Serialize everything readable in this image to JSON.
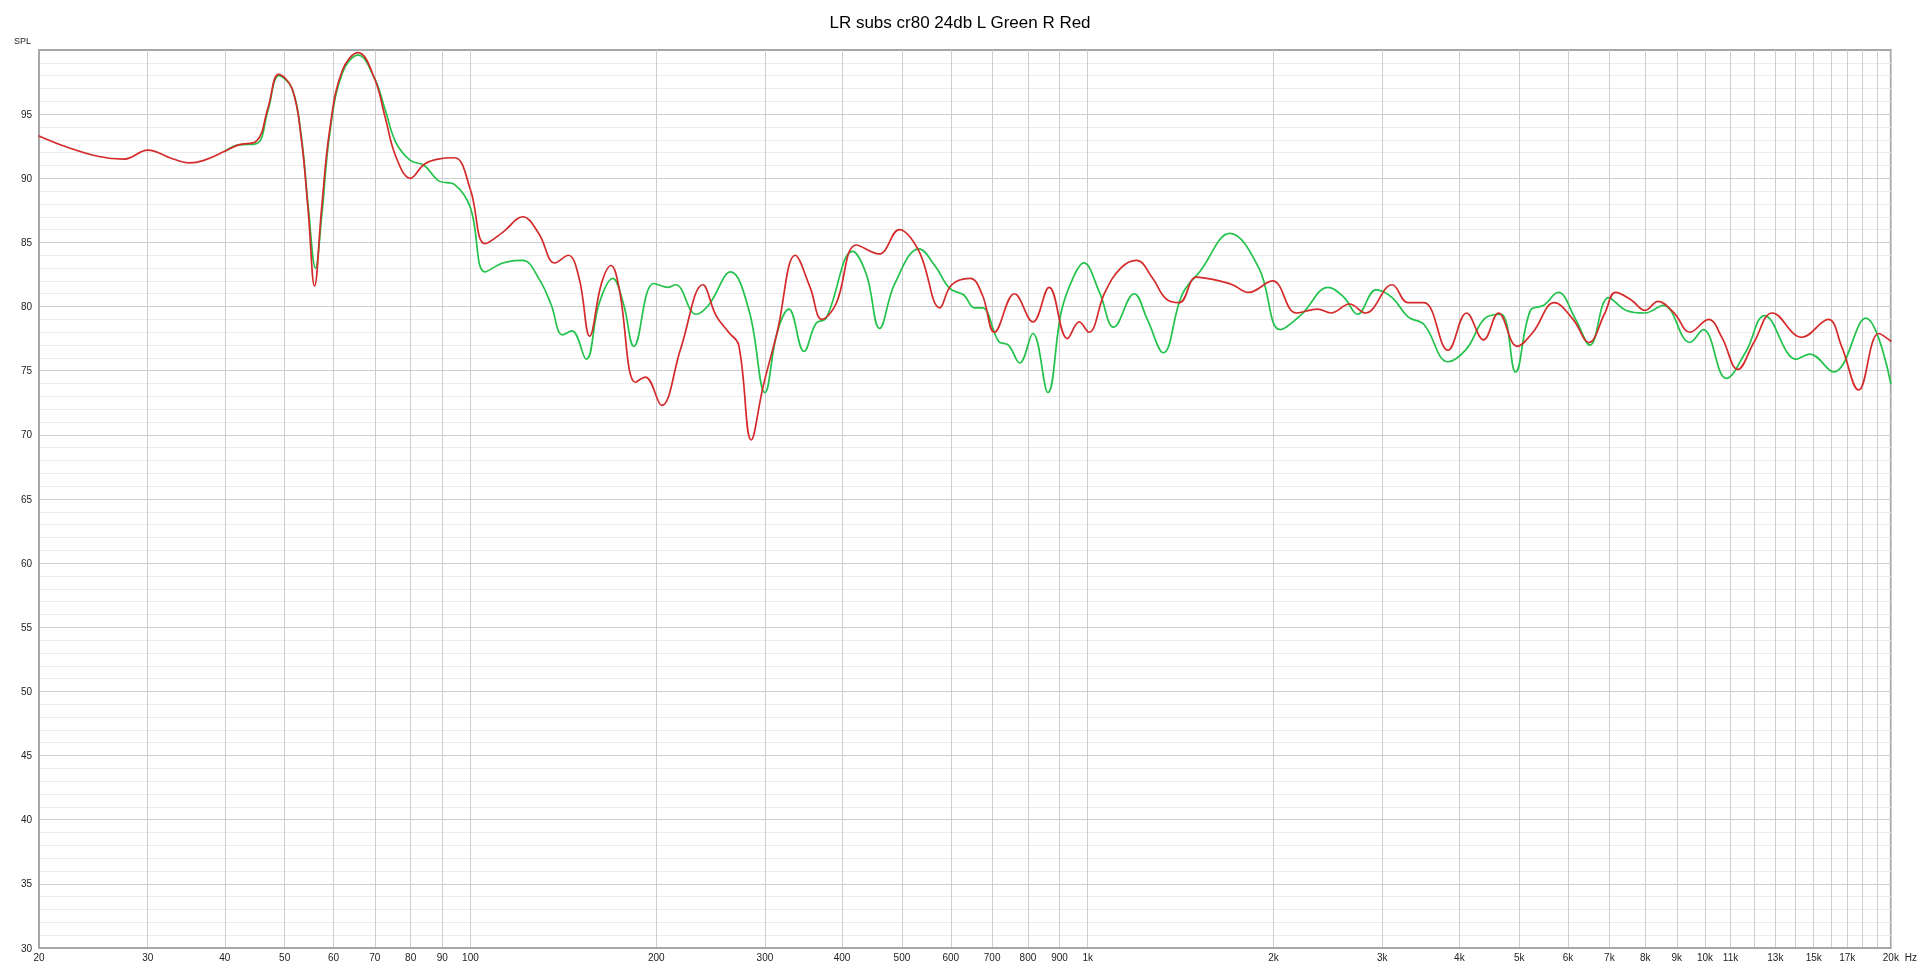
{
  "chart_data": {
    "type": "line",
    "title": "LR subs cr80 24db L Green R Red",
    "xlabel": "Hz",
    "ylabel": "SPL",
    "log": "x",
    "grid": true,
    "marker": "none",
    "xlim": [
      20,
      20000
    ],
    "ylim": [
      30,
      100
    ],
    "xticks": [
      20,
      30,
      40,
      50,
      60,
      70,
      80,
      90,
      100,
      200,
      300,
      400,
      500,
      600,
      700,
      800,
      900,
      {
        "value": 1000,
        "label": "1k"
      },
      {
        "value": 2000,
        "label": "2k"
      },
      {
        "value": 3000,
        "label": "3k"
      },
      {
        "value": 4000,
        "label": "4k"
      },
      {
        "value": 5000,
        "label": "5k"
      },
      {
        "value": 6000,
        "label": "6k"
      },
      {
        "value": 7000,
        "label": "7k"
      },
      {
        "value": 8000,
        "label": "8k"
      },
      {
        "value": 9000,
        "label": "9k"
      },
      {
        "value": 10000,
        "label": "10k"
      },
      {
        "value": 11000,
        "label": "11k"
      },
      {
        "value": 12000,
        "label": null
      },
      {
        "value": 13000,
        "label": "13k"
      },
      {
        "value": 14000,
        "label": null
      },
      {
        "value": 15000,
        "label": "15k"
      },
      {
        "value": 16000,
        "label": null
      },
      {
        "value": 17000,
        "label": "17k"
      },
      {
        "value": 18000,
        "label": null
      },
      {
        "value": 19000,
        "label": null
      },
      {
        "value": 20000,
        "label": "20k"
      }
    ],
    "yticks": [
      30,
      35,
      40,
      45,
      50,
      55,
      60,
      65,
      70,
      75,
      80,
      85,
      90,
      95
    ],
    "series": [
      {
        "color": "#22c24b",
        "x": [
          40,
          42.1,
          45,
          47,
          48.9,
          51.4,
          53.2,
          54.6,
          56.1,
          57.4,
          59.2,
          62,
          65.8,
          69.9,
          72.8,
          75.7,
          79.9,
          84.2,
          88.8,
          94.3,
          100,
          105.6,
          112.9,
          121.5,
          129,
          135,
          141,
          146,
          154,
          161.5,
          170,
          177,
          184,
          198,
          209,
          215,
          232,
          243,
          264,
          283,
          300,
          314,
          328,
          347,
          363,
          377,
          416,
          438,
          460,
          487,
          533,
          567,
          598,
          630,
          655,
          675,
          717,
          744,
          776,
          815,
          862,
          906,
          948,
          985,
          1045,
          1102,
          1189,
          1249,
          1326,
          1421,
          1523,
          1700,
          1894,
          2051,
          2221,
          2453,
          2603,
          2736,
          2932,
          3113,
          3303,
          3506,
          3833,
          4109,
          4404,
          4675,
          4932,
          5214,
          5480,
          5781,
          6172,
          6510,
          6980,
          7453,
          7990,
          8561,
          9454,
          9935,
          10826,
          11650,
          12489,
          14064,
          14779,
          16159,
          18208,
          20000
        ],
        "values": [
          92.1,
          92.6,
          92.7,
          95.3,
          98.0,
          97.0,
          93.3,
          87.8,
          83.0,
          87.0,
          93.6,
          98.2,
          99.6,
          97.8,
          95.3,
          92.8,
          91.4,
          91.0,
          89.8,
          89.5,
          87.7,
          82.7,
          83.4,
          83.6,
          82.2,
          80.2,
          77.8,
          78.1,
          75.9,
          80.2,
          82.2,
          80.2,
          76.9,
          81.8,
          81.5,
          81.7,
          79.4,
          80.1,
          82.7,
          79.6,
          73.3,
          78.0,
          79.8,
          76.5,
          78.7,
          79.1,
          84.3,
          82.5,
          78.3,
          81.8,
          84.5,
          83.1,
          81.4,
          80.9,
          79.9,
          79.9,
          77.3,
          77.0,
          75.6,
          77.9,
          73.3,
          79.6,
          82.3,
          83.4,
          81.1,
          78.4,
          81.0,
          79.0,
          76.4,
          80.9,
          82.8,
          85.7,
          83.0,
          78.2,
          79.4,
          81.5,
          80.7,
          79.4,
          81.3,
          80.7,
          79.2,
          78.6,
          75.7,
          76.7,
          79.1,
          79.4,
          74.9,
          79.7,
          80.1,
          81.1,
          79.0,
          77.0,
          80.7,
          79.7,
          79.5,
          80.1,
          77.2,
          78.2,
          74.4,
          76.5,
          79.3,
          75.9,
          76.3,
          74.9,
          79.1,
          74.0
        ]
      },
      {
        "color": "#d42a2a",
        "x": [
          20,
          22,
          25,
          27.5,
          30,
          33,
          35,
          37,
          40,
          42.1,
          45,
          47,
          48.9,
          51.4,
          53.2,
          54.6,
          55.9,
          57.4,
          59.2,
          62,
          65.8,
          69.9,
          72.8,
          75.7,
          79.9,
          84.2,
          88.8,
          94.3,
          100,
          105.6,
          112.9,
          121.5,
          129,
          137,
          144,
          150,
          156,
          163,
          169,
          174,
          185,
          192,
          204,
          219,
          238,
          250,
          262,
          272,
          285,
          298,
          314,
          336,
          355,
          371,
          391,
          422,
          459,
          495,
          533,
          576,
          602,
          645,
          675,
          706,
          761,
          815,
          866,
          927,
          969,
          1004,
          1066,
          1131,
          1200,
          1274,
          1339,
          1407,
          1500,
          1601,
          1716,
          1821,
          1992,
          2178,
          2357,
          2478,
          2655,
          2818,
          3113,
          3303,
          3506,
          3833,
          4109,
          4378,
          4628,
          4962,
          5264,
          5701,
          6113,
          6484,
          6884,
          7162,
          7603,
          7990,
          8394,
          8909,
          9454,
          10135,
          10649,
          11300,
          12000,
          12860,
          14344,
          15835,
          16645,
          17737,
          19123,
          20000
        ],
        "values": [
          93.3,
          92.5,
          91.7,
          91.5,
          92.2,
          91.5,
          91.2,
          91.4,
          92.1,
          92.6,
          92.9,
          95.5,
          98.1,
          97.0,
          93.1,
          87.4,
          81.6,
          87.7,
          93.9,
          98.4,
          99.8,
          97.8,
          94.7,
          91.7,
          90.0,
          91.1,
          91.5,
          91.6,
          89.1,
          84.9,
          85.8,
          87.0,
          85.7,
          83.4,
          84.0,
          82.2,
          77.7,
          81.8,
          83.2,
          81.5,
          74.1,
          74.5,
          72.3,
          76.7,
          81.7,
          79.3,
          78.0,
          77.0,
          69.6,
          73.8,
          78.0,
          84.0,
          81.5,
          79.0,
          80.2,
          84.8,
          84.1,
          86.0,
          84.3,
          79.9,
          81.7,
          82.2,
          80.9,
          78.0,
          81.0,
          78.8,
          81.5,
          77.5,
          78.8,
          78.0,
          81.1,
          83.0,
          83.6,
          82.2,
          80.6,
          80.3,
          82.3,
          82.1,
          81.7,
          81.1,
          82.0,
          79.5,
          79.8,
          79.5,
          80.2,
          79.5,
          81.7,
          80.3,
          80.3,
          76.6,
          79.5,
          77.4,
          79.5,
          76.9,
          78.0,
          80.3,
          79.0,
          77.2,
          79.5,
          81.1,
          80.5,
          79.7,
          80.4,
          79.5,
          78.0,
          79.0,
          77.6,
          75.1,
          77.2,
          79.5,
          77.6,
          79.0,
          76.9,
          73.5,
          77.9,
          77.3
        ]
      }
    ]
  }
}
